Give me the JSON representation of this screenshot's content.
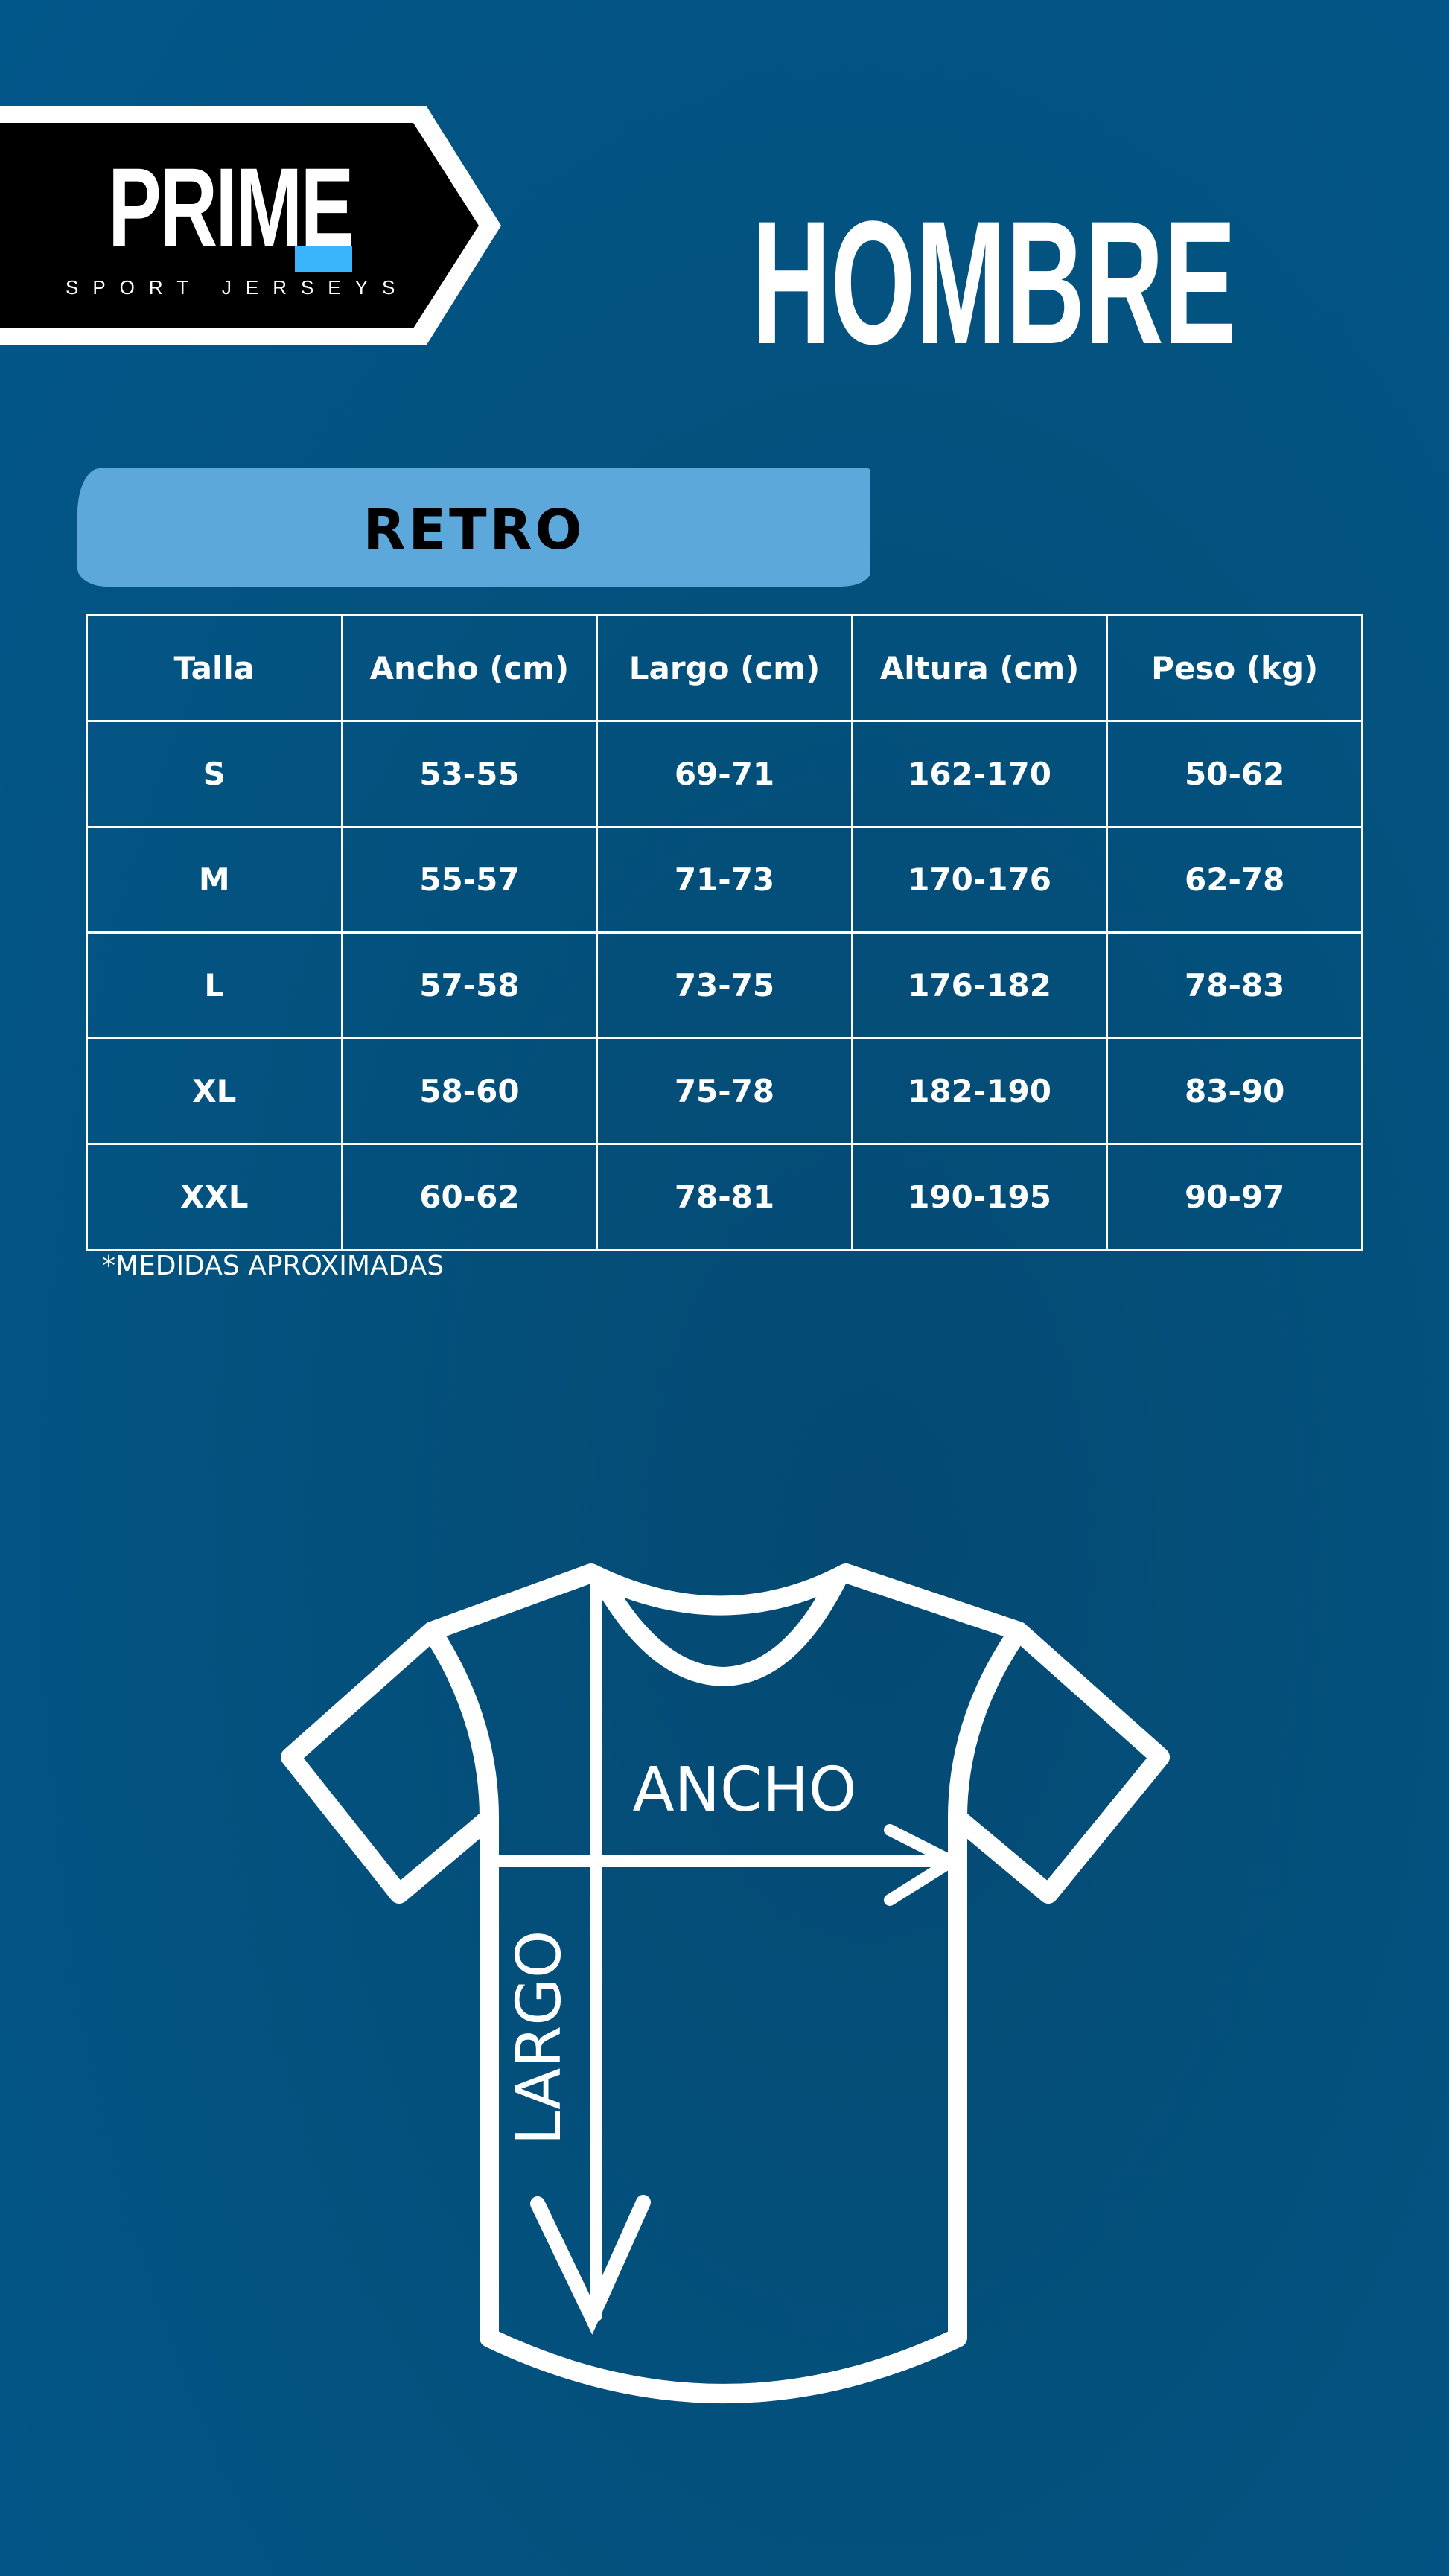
{
  "logo": {
    "word": "PRIME",
    "tagline": "SPORT JERSEYS",
    "accent_color": "#3ab4fb"
  },
  "header": {
    "title": "HOMBRE"
  },
  "section": {
    "label": "RETRO",
    "banner_color": "#5ca8da"
  },
  "table": {
    "headers": [
      "Talla",
      "Ancho (cm)",
      "Largo (cm)",
      "Altura (cm)",
      "Peso (kg)"
    ],
    "rows": [
      [
        "S",
        "53-55",
        "69-71",
        "162-170",
        "50-62"
      ],
      [
        "M",
        "55-57",
        "71-73",
        "170-176",
        "62-78"
      ],
      [
        "L",
        "57-58",
        "73-75",
        "176-182",
        "78-83"
      ],
      [
        "XL",
        "58-60",
        "75-78",
        "182-190",
        "83-90"
      ],
      [
        "XXL",
        "60-62",
        "78-81",
        "190-195",
        "90-97"
      ]
    ]
  },
  "note": "*MEDIDAS APROXIMADAS",
  "diagram": {
    "width_label": "ANCHO",
    "length_label": "LARGO"
  },
  "colors": {
    "background": "#03527f",
    "lines": "#ffffff"
  }
}
